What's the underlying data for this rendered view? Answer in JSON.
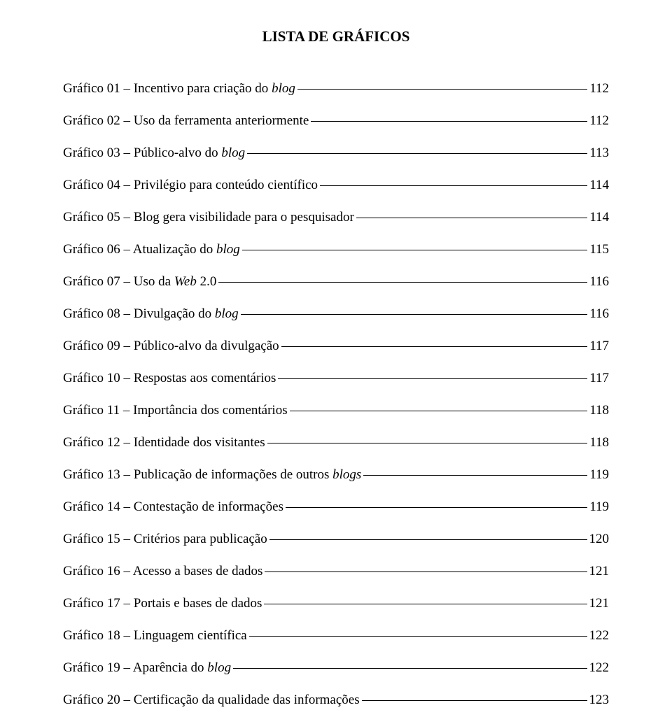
{
  "title": "LISTA DE GRÁFICOS",
  "entries": [
    {
      "prefix": "Gráfico 01 – Incentivo para criação do ",
      "italic": "blog",
      "suffix": "",
      "page": "112"
    },
    {
      "prefix": "Gráfico 02 – Uso da ferramenta anteriormente",
      "italic": "",
      "suffix": "",
      "page": " 112"
    },
    {
      "prefix": "Gráfico 03 – Público-alvo do ",
      "italic": "blog ",
      "suffix": "",
      "page": " 113"
    },
    {
      "prefix": "Gráfico 04 – Privilégio para conteúdo científico",
      "italic": "",
      "suffix": "",
      "page": "114"
    },
    {
      "prefix": "Gráfico 05 – Blog gera visibilidade para o pesquisador",
      "italic": "",
      "suffix": "",
      "page": " 114"
    },
    {
      "prefix": "Gráfico 06 – Atualização do ",
      "italic": "blog",
      "suffix": "",
      "page": " 115"
    },
    {
      "prefix": "Gráfico 07 – Uso da ",
      "italic": "Web",
      "suffix": " 2.0",
      "page": " 116"
    },
    {
      "prefix": "Gráfico 08 – Divulgação do ",
      "italic": "blog",
      "suffix": "",
      "page": " 116"
    },
    {
      "prefix": "Gráfico 09 – Público-alvo da divulgação",
      "italic": "",
      "suffix": "",
      "page": " 117"
    },
    {
      "prefix": "Gráfico 10 – Respostas aos comentários",
      "italic": "",
      "suffix": "",
      "page": " 117"
    },
    {
      "prefix": "Gráfico 11 – Importância dos comentários ",
      "italic": "",
      "suffix": "",
      "page": "118"
    },
    {
      "prefix": "Gráfico 12 – Identidade dos visitantes ",
      "italic": "",
      "suffix": "",
      "page": " 118"
    },
    {
      "prefix": "Gráfico 13 – Publicação de informações de outros ",
      "italic": "blogs ",
      "suffix": "",
      "page": "119"
    },
    {
      "prefix": "Gráfico 14 – Contestação de informações ",
      "italic": "",
      "suffix": "",
      "page": "119"
    },
    {
      "prefix": "Gráfico 15 – Critérios para publicação ",
      "italic": "",
      "suffix": "",
      "page": " 120"
    },
    {
      "prefix": "Gráfico 16 – Acesso a bases de dados ",
      "italic": "",
      "suffix": "",
      "page": "121"
    },
    {
      "prefix": "Gráfico 17 – Portais e bases de dados",
      "italic": "",
      "suffix": "",
      "page": " 121"
    },
    {
      "prefix": "Gráfico 18 – Linguagem científica ",
      "italic": "",
      "suffix": "",
      "page": "122"
    },
    {
      "prefix": "Gráfico 19 – Aparência do ",
      "italic": "blog",
      "suffix": "",
      "page": "122"
    },
    {
      "prefix": "Gráfico 20 – Certificação da qualidade das informações",
      "italic": "",
      "suffix": "",
      "page": "123"
    }
  ]
}
